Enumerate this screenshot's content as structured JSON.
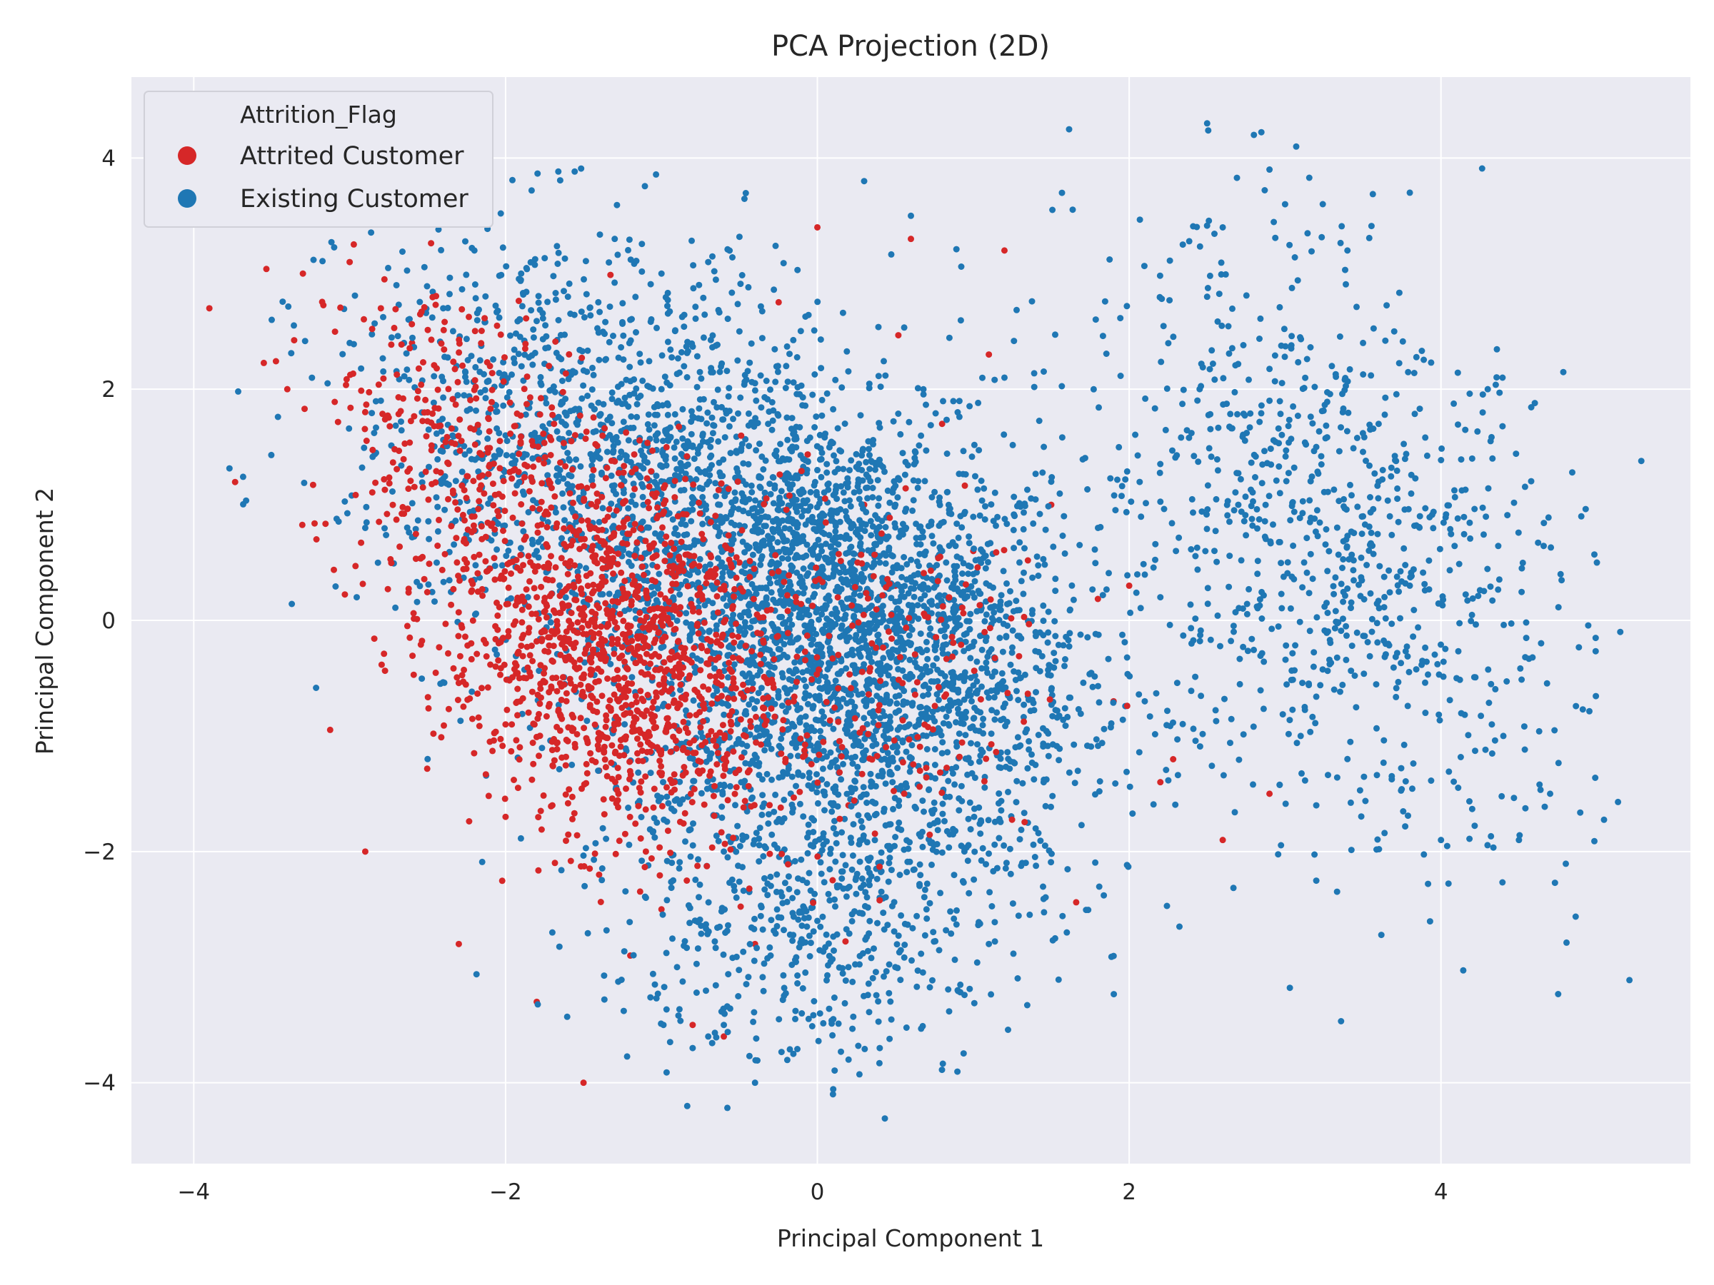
{
  "chart_data": {
    "type": "scatter",
    "title": "PCA Projection (2D)",
    "xlabel": "Principal Component 1",
    "ylabel": "Principal Component 2",
    "xlim": [
      -4.4,
      5.6
    ],
    "ylim": [
      -4.7,
      4.7
    ],
    "xticks": [
      -4,
      -2,
      0,
      2,
      4
    ],
    "yticks": [
      -4,
      -2,
      0,
      2,
      4
    ],
    "xtick_labels": [
      "−4",
      "−2",
      "0",
      "2",
      "4"
    ],
    "ytick_labels": [
      "−4",
      "−2",
      "0",
      "2",
      "4"
    ],
    "grid": true,
    "legend": {
      "title": "Attrition_Flag",
      "placement": "top-left"
    },
    "colors": {
      "background": "#eaeaf2",
      "grid": "#ffffff",
      "attrited": "#d62728",
      "existing": "#1f77b4"
    },
    "series": [
      {
        "name": "Existing Customer",
        "color": "#1f77b4",
        "x": [
          0.05,
          -0.3,
          0.4,
          0.2,
          -0.1,
          0.6,
          -0.5,
          0.3,
          0.0,
          0.8,
          -0.2,
          0.5,
          0.1,
          -0.4,
          0.7,
          1.0,
          -0.8,
          1.3,
          -1.0,
          0.9,
          1.5,
          -0.6,
          0.4,
          1.8,
          -1.2,
          2.2,
          2.5,
          2.9,
          3.2,
          3.5,
          3.8,
          4.1,
          4.4,
          4.7,
          5.0,
          5.15,
          2.8,
          3.0,
          3.3,
          3.6,
          3.9,
          4.2,
          2.6,
          2.4,
          3.1,
          3.4,
          3.7,
          4.0,
          4.3,
          2.1,
          2.3,
          2.7,
          3.8,
          3.4,
          4.5,
          4.9,
          2.5,
          2.9,
          3.5,
          3.6,
          -3.5,
          -3.0,
          -2.7,
          -2.4,
          -2.2,
          -1.9,
          -1.6,
          -1.3,
          -1.0,
          -0.7,
          -2.8,
          -2.0,
          -1.5,
          -1.8,
          -0.5,
          -0.2,
          0.3,
          0.6,
          1.2,
          -1.1,
          -0.9,
          -0.6,
          0.5,
          0.2,
          -0.3,
          0.7,
          1.6,
          -2.5,
          -2.9,
          -1.7,
          -0.8,
          0.1,
          -0.4,
          1.1,
          0.9,
          1.4,
          -0.1,
          0.4,
          0.0,
          -0.7
        ],
        "y": [
          0.1,
          -0.4,
          0.5,
          -0.8,
          0.9,
          -0.2,
          0.3,
          -1.2,
          1.3,
          0.6,
          -0.6,
          1.0,
          -1.6,
          0.0,
          -1.0,
          0.4,
          1.5,
          -0.5,
          2.0,
          1.8,
          1.2,
          -2.0,
          -2.4,
          0.8,
          2.6,
          0.2,
          2.8,
          1.9,
          1.5,
          0.9,
          0.3,
          -0.5,
          -1.0,
          -1.5,
          0.5,
          -0.1,
          4.2,
          3.6,
          2.2,
          1.2,
          -0.8,
          1.4,
          3.4,
          -0.2,
          -1.0,
          -1.2,
          2.5,
          -1.9,
          2.0,
          -0.7,
          0.6,
          1.0,
          3.7,
          3.2,
          -1.9,
          0.9,
          4.3,
          3.9,
          2.4,
          1.7,
          2.6,
          2.4,
          2.9,
          2.7,
          3.2,
          3.0,
          2.8,
          3.3,
          3.0,
          3.1,
          1.9,
          1.6,
          1.1,
          0.6,
          2.5,
          2.2,
          3.8,
          3.5,
          2.1,
          -2.4,
          -3.0,
          -3.5,
          -3.0,
          -3.8,
          -2.9,
          -2.5,
          -2.7,
          -1.2,
          0.8,
          -2.7,
          -3.7,
          -4.1,
          -4.0,
          -2.8,
          -3.2,
          -1.8,
          -3.4,
          -3.7,
          -2.6,
          -3.6
        ]
      },
      {
        "name": "Attrited Customer",
        "color": "#d62728",
        "x": [
          -1.8,
          -1.5,
          -1.2,
          -1.0,
          -2.0,
          -1.6,
          -1.4,
          -0.9,
          -1.7,
          -1.3,
          -2.2,
          -0.7,
          -1.1,
          -1.9,
          -0.5,
          -2.4,
          -2.6,
          -2.8,
          -3.0,
          -3.3,
          -3.9,
          -2.1,
          -1.0,
          -0.4,
          0.2,
          0.5,
          0.8,
          1.1,
          1.5,
          1.9,
          2.2,
          2.6,
          2.9,
          -1.5,
          -2.9,
          -2.3,
          -0.8,
          0.0,
          0.6,
          1.2,
          -1.8,
          -1.2,
          -0.6,
          0.3,
          1.0,
          2.0,
          -2.5,
          -3.4,
          -2.0,
          -1.4
        ],
        "y": [
          0.2,
          -0.5,
          -0.8,
          0.1,
          -0.9,
          0.4,
          -1.3,
          -0.3,
          -1.6,
          0.6,
          0.9,
          -1.0,
          -2.0,
          1.2,
          0.5,
          1.5,
          2.4,
          2.7,
          3.1,
          3.0,
          2.7,
          2.2,
          -2.5,
          -2.8,
          -1.6,
          0.3,
          1.7,
          2.3,
          1.0,
          -0.7,
          -1.4,
          -1.9,
          -1.5,
          -4.0,
          -2.0,
          -2.8,
          -3.5,
          3.4,
          3.3,
          3.2,
          -3.3,
          -2.9,
          -3.6,
          1.0,
          0.6,
          0.3,
          1.8,
          2.0,
          -1.7,
          -2.2
        ]
      }
    ]
  }
}
